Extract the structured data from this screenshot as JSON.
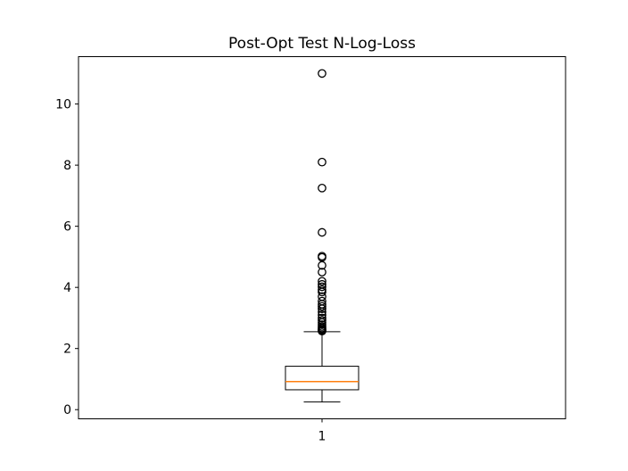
{
  "chart_data": {
    "type": "box",
    "title": "Post-Opt Test N-Log-Loss",
    "xlabel": "",
    "ylabel": "",
    "categories": [
      "1"
    ],
    "ylim": [
      -0.3,
      11.55
    ],
    "yticks": [
      0,
      2,
      4,
      6,
      8,
      10
    ],
    "grid": false,
    "legend": "none",
    "boxes": [
      {
        "category": "1",
        "whisker_low": 0.25,
        "q1": 0.65,
        "median": 0.92,
        "q3": 1.42,
        "whisker_high": 2.55,
        "outliers": [
          2.57,
          2.6,
          2.63,
          2.67,
          2.72,
          2.78,
          2.85,
          2.92,
          3.0,
          3.1,
          3.2,
          3.3,
          3.38,
          3.45,
          3.55,
          3.7,
          3.85,
          3.92,
          4.02,
          4.1,
          4.2,
          4.5,
          4.72,
          4.98,
          5.02,
          5.8,
          7.25,
          8.1,
          11.0
        ]
      }
    ],
    "colors": {
      "box": "#000000",
      "median": "#ff7f0e",
      "outlier": "#000000"
    }
  }
}
